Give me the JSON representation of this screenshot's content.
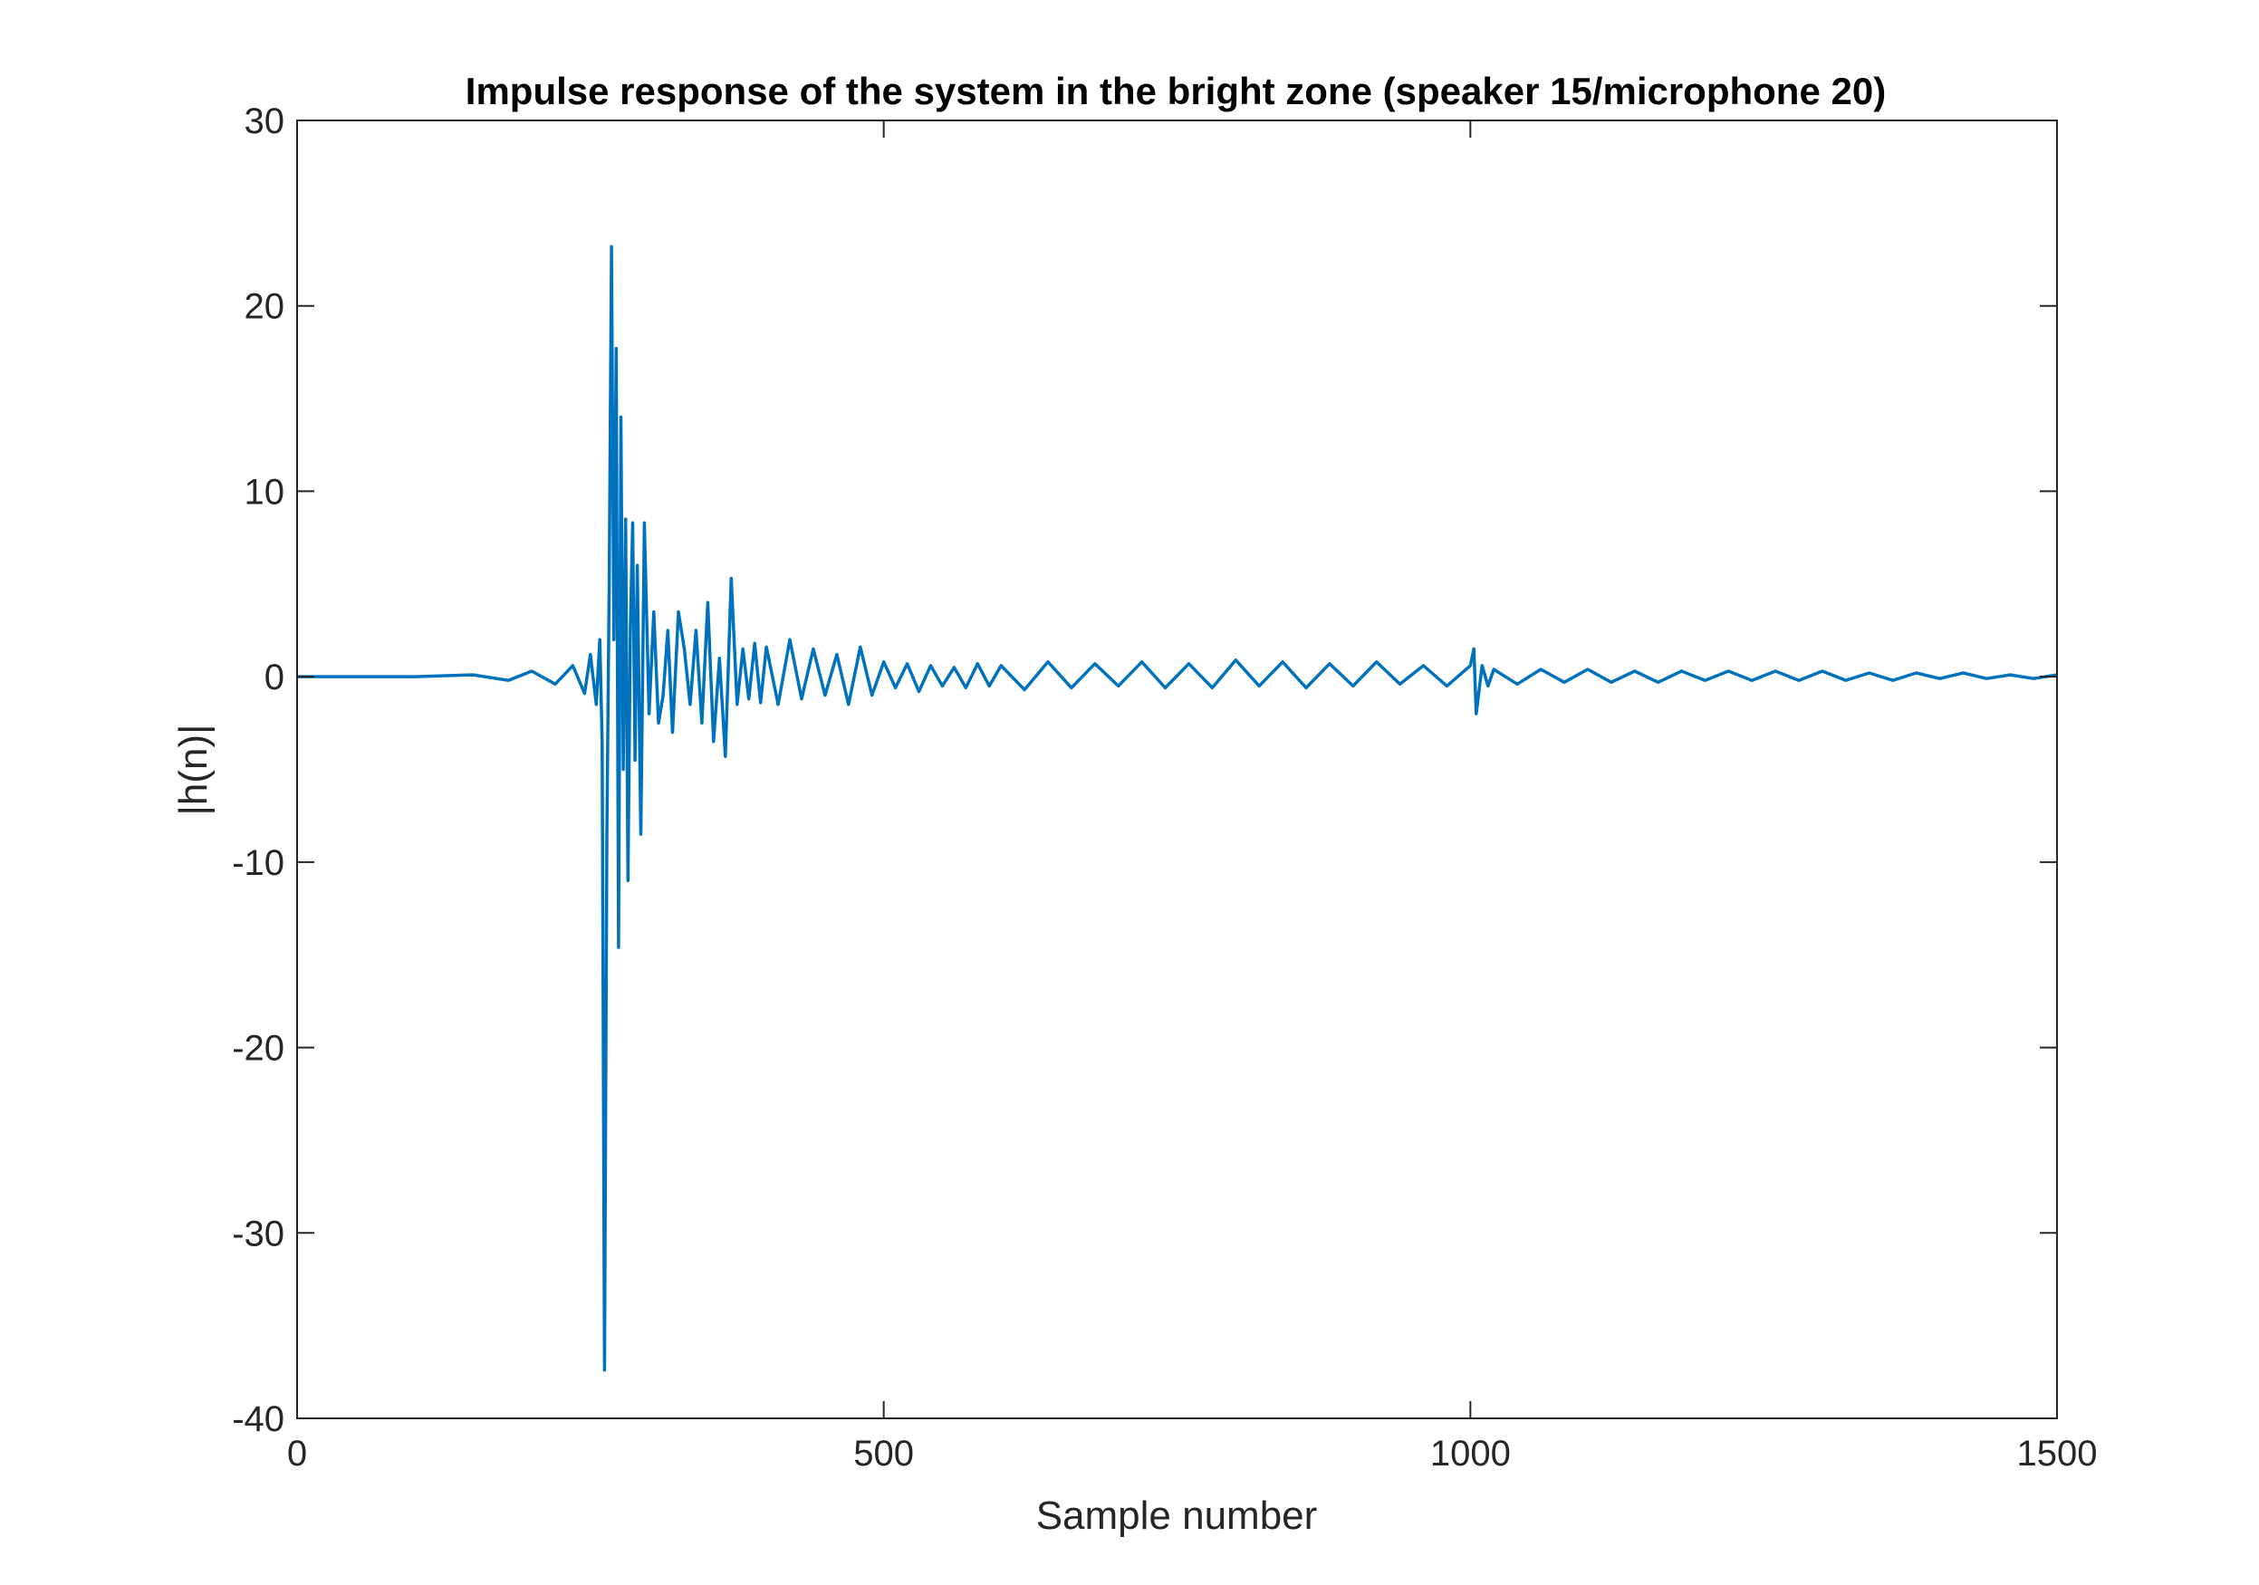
{
  "chart_data": {
    "type": "line",
    "title": "Impulse response of the system in the bright zone (speaker 15/microphone 20)",
    "xlabel": "Sample number",
    "ylabel": "|h(n)|",
    "xlim": [
      0,
      1500
    ],
    "ylim": [
      -40,
      30
    ],
    "xticks": [
      0,
      500,
      1000,
      1500
    ],
    "yticks": [
      -40,
      -30,
      -20,
      -10,
      0,
      10,
      20,
      30
    ],
    "grid": false,
    "legend": "none",
    "series": [
      {
        "color": "#0072BD",
        "x": [
          0,
          100,
          150,
          180,
          200,
          220,
          235,
          245,
          250,
          255,
          258,
          260,
          262,
          264,
          266,
          268,
          270,
          272,
          274,
          276,
          278,
          280,
          282,
          284,
          286,
          288,
          290,
          293,
          296,
          300,
          304,
          308,
          312,
          316,
          320,
          325,
          330,
          335,
          340,
          345,
          350,
          355,
          360,
          365,
          370,
          375,
          380,
          385,
          390,
          395,
          400,
          410,
          420,
          430,
          440,
          450,
          460,
          470,
          480,
          490,
          500,
          510,
          520,
          530,
          540,
          550,
          560,
          570,
          580,
          590,
          600,
          620,
          640,
          660,
          680,
          700,
          720,
          740,
          760,
          780,
          800,
          820,
          840,
          860,
          880,
          900,
          920,
          940,
          960,
          980,
          1000,
          1003,
          1005,
          1010,
          1015,
          1020,
          1040,
          1060,
          1080,
          1100,
          1120,
          1140,
          1160,
          1180,
          1200,
          1220,
          1240,
          1260,
          1280,
          1300,
          1320,
          1340,
          1360,
          1380,
          1400,
          1420,
          1440,
          1460,
          1480,
          1500
        ],
        "y": [
          0,
          0,
          0.1,
          -0.2,
          0.3,
          -0.4,
          0.6,
          -0.9,
          1.2,
          -1.5,
          2.0,
          -3.5,
          -37.4,
          -8.5,
          5.2,
          23.2,
          2.0,
          17.7,
          -14.6,
          14.0,
          -5.0,
          8.5,
          -11.0,
          2.5,
          8.3,
          -4.5,
          6.0,
          -8.5,
          8.3,
          -2.0,
          3.5,
          -2.5,
          -1.0,
          2.5,
          -3.0,
          3.5,
          1.5,
          -1.5,
          2.5,
          -2.5,
          4.0,
          -3.5,
          1.0,
          -4.3,
          5.3,
          -1.5,
          1.5,
          -1.2,
          1.8,
          -1.4,
          1.6,
          -1.5,
          2.0,
          -1.2,
          1.5,
          -1.0,
          1.2,
          -1.5,
          1.6,
          -1.0,
          0.8,
          -0.6,
          0.7,
          -0.8,
          0.6,
          -0.5,
          0.5,
          -0.6,
          0.7,
          -0.5,
          0.6,
          -0.7,
          0.8,
          -0.6,
          0.7,
          -0.5,
          0.8,
          -0.6,
          0.7,
          -0.6,
          0.9,
          -0.5,
          0.8,
          -0.6,
          0.7,
          -0.5,
          0.8,
          -0.4,
          0.6,
          -0.5,
          0.6,
          1.5,
          -2.0,
          0.6,
          -0.5,
          0.4,
          -0.4,
          0.4,
          -0.3,
          0.4,
          -0.3,
          0.3,
          -0.3,
          0.3,
          -0.2,
          0.3,
          -0.2,
          0.3,
          -0.2,
          0.3,
          -0.2,
          0.2,
          -0.2,
          0.2,
          -0.1,
          0.2,
          -0.1,
          0.1,
          -0.1,
          0.1
        ]
      }
    ]
  }
}
